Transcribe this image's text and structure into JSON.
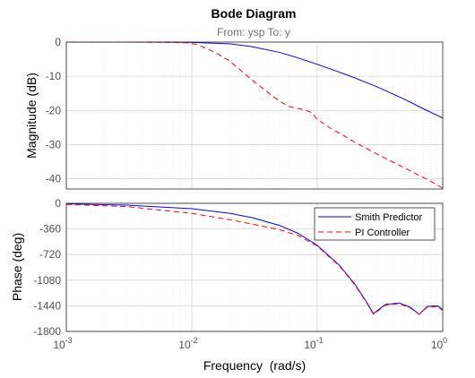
{
  "chart_data": {
    "type": "line",
    "title": "Bode Diagram",
    "subtitle": "From: ysp  To: y",
    "xlabel": "Frequency  (rad/s)",
    "xscale": "log",
    "xlim": [
      0.001,
      1
    ],
    "x_ticks": [
      {
        "base": "10",
        "exp": "-3",
        "value": 0.001
      },
      {
        "base": "10",
        "exp": "-2",
        "value": 0.01
      },
      {
        "base": "10",
        "exp": "-1",
        "value": 0.1
      },
      {
        "base": "10",
        "exp": "0",
        "value": 1
      }
    ],
    "grid": true,
    "legend_position": "top-right",
    "series_styles": [
      {
        "name": "Smith Predictor",
        "color": "#0000ff",
        "dash": "solid"
      },
      {
        "name": "PI Controller",
        "color": "#ff0000",
        "dash": "dashed"
      }
    ],
    "panels": [
      {
        "id": "magnitude",
        "ylabel": "Magnitude (dB)",
        "ylim": [
          -43,
          0
        ],
        "yticks": [
          "0",
          "-10",
          "-20",
          "-30",
          "-40"
        ],
        "ytick_values": [
          0,
          -10,
          -20,
          -30,
          -40
        ],
        "series": [
          {
            "name": "Smith Predictor",
            "x": [
              0.001,
              0.002,
              0.005,
              0.01,
              0.02,
              0.03,
              0.05,
              0.07,
              0.1,
              0.15,
              0.2,
              0.3,
              0.5,
              0.7,
              1.0
            ],
            "y": [
              0,
              0,
              0,
              -0.1,
              -0.5,
              -1.3,
              -3.0,
              -4.6,
              -6.5,
              -8.8,
              -10.5,
              -13.1,
              -16.8,
              -19.5,
              -22.2
            ]
          },
          {
            "name": "PI Controller",
            "x": [
              0.001,
              0.003,
              0.006,
              0.009,
              0.011,
              0.013,
              0.016,
              0.02,
              0.03,
              0.04,
              0.05,
              0.06,
              0.08,
              0.09,
              0.1,
              0.13,
              0.16,
              0.2,
              0.25,
              0.3,
              0.4,
              0.5,
              0.6,
              0.7,
              0.8,
              0.9,
              1.0
            ],
            "y": [
              0,
              0,
              -0.1,
              -0.2,
              -0.7,
              -1.8,
              -3.4,
              -5.5,
              -11.0,
              -14.6,
              -17.3,
              -18.9,
              -19.9,
              -20.6,
              -22.6,
              -25.4,
              -27.2,
              -29.4,
              -31.2,
              -32.8,
              -35.1,
              -36.9,
              -38.4,
              -39.6,
              -40.7,
              -41.8,
              -42.8
            ]
          }
        ]
      },
      {
        "id": "phase",
        "ylabel": "Phase (deg)",
        "ylim": [
          -1800,
          0
        ],
        "yticks": [
          "0",
          "-360",
          "-720",
          "-1080",
          "-1440",
          "-1800"
        ],
        "ytick_values": [
          0,
          -360,
          -720,
          -1080,
          -1440,
          -1800
        ],
        "series": [
          {
            "name": "Smith Predictor",
            "x": [
              0.001,
              0.003,
              0.01,
              0.02,
              0.03,
              0.05,
              0.07,
              0.1,
              0.15,
              0.2,
              0.25,
              0.28,
              0.35,
              0.45,
              0.55,
              0.65,
              0.75,
              0.9,
              1.0
            ],
            "y": [
              -8,
              -25,
              -75,
              -140,
              -200,
              -310,
              -420,
              -590,
              -870,
              -1140,
              -1400,
              -1550,
              -1420,
              -1400,
              -1460,
              -1560,
              -1450,
              -1440,
              -1490
            ]
          },
          {
            "name": "PI Controller",
            "x": [
              0.001,
              0.003,
              0.01,
              0.02,
              0.03,
              0.05,
              0.07,
              0.1,
              0.15,
              0.2,
              0.25,
              0.28,
              0.35,
              0.45,
              0.55,
              0.65,
              0.75,
              0.9,
              1.0
            ],
            "y": [
              -15,
              -45,
              -140,
              -230,
              -290,
              -370,
              -450,
              -600,
              -880,
              -1150,
              -1410,
              -1560,
              -1430,
              -1410,
              -1470,
              -1560,
              -1460,
              -1450,
              -1500
            ]
          }
        ]
      }
    ]
  }
}
